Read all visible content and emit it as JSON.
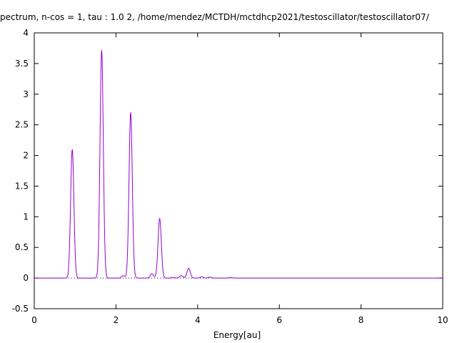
{
  "title_text": "pectrum,  n-cos = 1, tau :      1.0  2,   /home/mendez/MCTDH/mctdhcp2021/testoscillator/testoscillator07/",
  "chart_data": {
    "type": "line",
    "title": "pectrum,  n-cos = 1, tau :      1.0  2,   /home/mendez/MCTDH/mctdhcp2021/testoscillator/testoscillator07/",
    "xlabel": "Energy[au]",
    "ylabel": "",
    "xlim": [
      0,
      10
    ],
    "ylim": [
      -0.5,
      4
    ],
    "x_ticks": [
      0,
      2,
      4,
      6,
      8,
      10
    ],
    "y_ticks": [
      -0.5,
      0,
      0.5,
      1,
      1.5,
      2,
      2.5,
      3,
      3.5,
      4
    ],
    "x_tick_labels": [
      "0",
      "2",
      "4",
      "6",
      "8",
      "10"
    ],
    "y_tick_labels": [
      "-0.5",
      "0",
      "0.5",
      "1",
      "1.5",
      "2",
      "2.5",
      "3",
      "3.5",
      "4"
    ],
    "grid": false,
    "series_color": "#9400d3",
    "series": [
      {
        "peaks": [
          {
            "x": 0.93,
            "y": 2.1
          },
          {
            "x": 1.65,
            "y": 3.72
          },
          {
            "x": 2.18,
            "y": 0.04
          },
          {
            "x": 2.36,
            "y": 2.7
          },
          {
            "x": 2.88,
            "y": 0.07
          },
          {
            "x": 3.07,
            "y": 0.97
          },
          {
            "x": 3.4,
            "y": 0.01
          },
          {
            "x": 3.6,
            "y": 0.04
          },
          {
            "x": 3.78,
            "y": 0.16
          },
          {
            "x": 4.1,
            "y": 0.02
          },
          {
            "x": 4.3,
            "y": 0.015
          },
          {
            "x": 4.8,
            "y": 0.01
          }
        ],
        "peak_width": 0.04,
        "baseline": 0.0
      }
    ]
  }
}
